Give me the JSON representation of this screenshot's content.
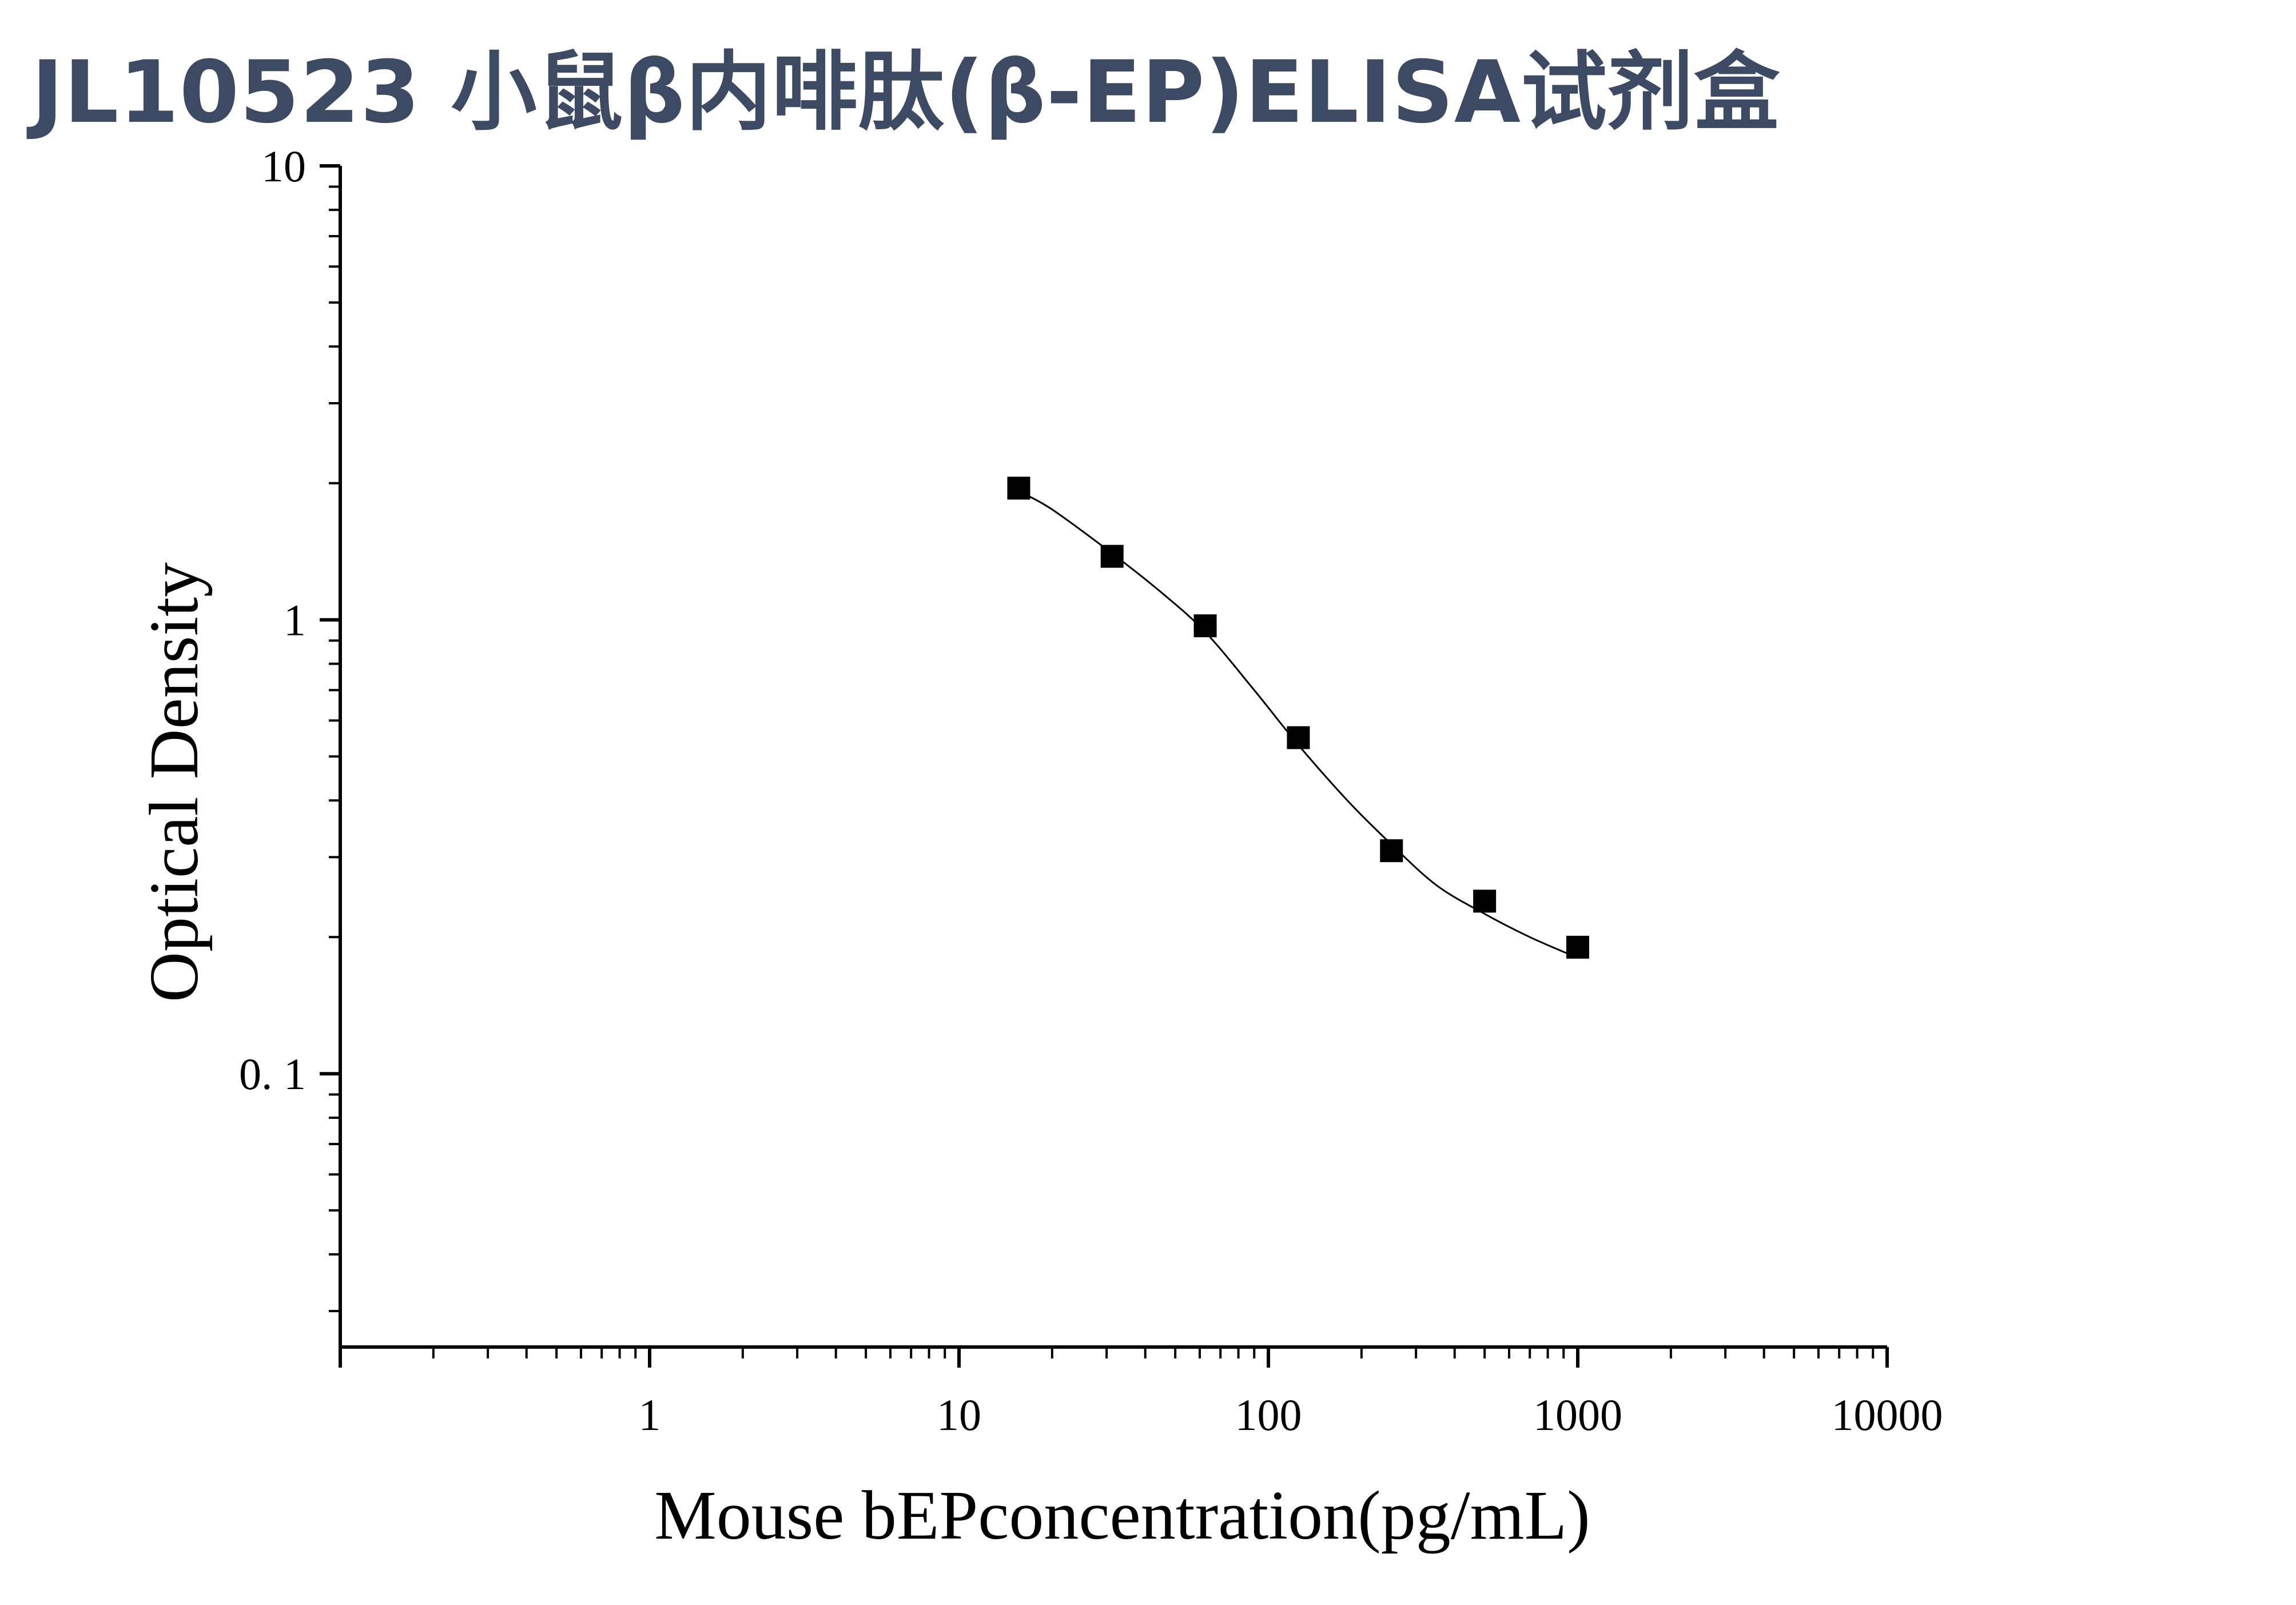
{
  "page": {
    "title": "JL10523 小鼠β内啡肽(β-EP)ELISA试剂盒"
  },
  "chart_data": {
    "type": "scatter",
    "title": "",
    "xlabel": "Mouse bEPconcentration(pg/mL)",
    "ylabel": "Optical Density",
    "xscale": "log",
    "yscale": "log",
    "xlim": [
      0.1,
      10000
    ],
    "ylim": [
      0.025,
      10
    ],
    "x_ticks": [
      {
        "value": 1,
        "label": "1"
      },
      {
        "value": 10,
        "label": "10"
      },
      {
        "value": 100,
        "label": "100"
      },
      {
        "value": 1000,
        "label": "1000"
      },
      {
        "value": 10000,
        "label": "10000"
      }
    ],
    "y_ticks": [
      {
        "value": 0.1,
        "label": "0. 1"
      },
      {
        "value": 1,
        "label": "1"
      },
      {
        "value": 10,
        "label": "10"
      }
    ],
    "grid": false,
    "series": [
      {
        "marker": "square",
        "x": [
          15.6,
          31.25,
          62.5,
          125,
          250,
          500,
          1000
        ],
        "y": [
          1.95,
          1.38,
          0.97,
          0.55,
          0.31,
          0.24,
          0.19
        ]
      }
    ],
    "fit_curve": {
      "type": "4-parameter logistic",
      "x": [
        15.6,
        20,
        31.25,
        45,
        62.5,
        90,
        125,
        180,
        250,
        350,
        500,
        700,
        1000
      ],
      "y": [
        1.92,
        1.75,
        1.4,
        1.15,
        0.94,
        0.7,
        0.53,
        0.4,
        0.32,
        0.26,
        0.225,
        0.2,
        0.18
      ]
    },
    "colors": {
      "title": "#3d4a63",
      "axis": "#000000",
      "marker": "#000000",
      "curve": "#000000"
    }
  }
}
